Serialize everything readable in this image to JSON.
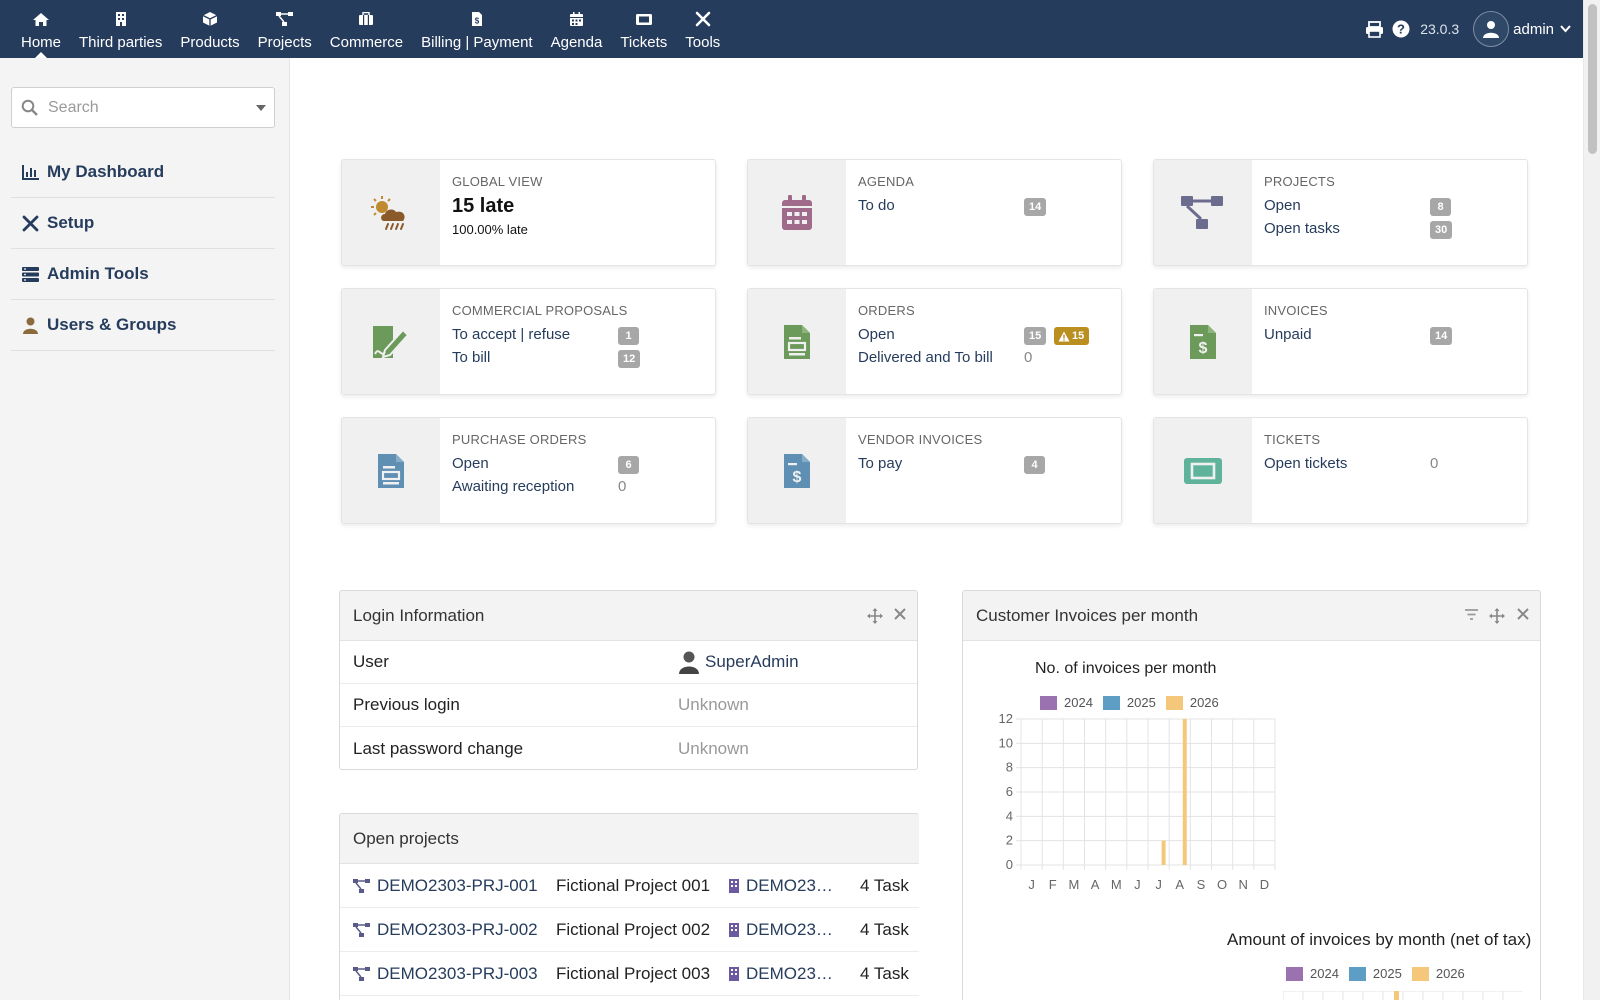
{
  "topnav": {
    "items": [
      {
        "label": "Home",
        "icon": "home-icon"
      },
      {
        "label": "Third parties",
        "icon": "building-icon"
      },
      {
        "label": "Products",
        "icon": "cube-icon"
      },
      {
        "label": "Projects",
        "icon": "project-icon"
      },
      {
        "label": "Commerce",
        "icon": "suitcase-icon"
      },
      {
        "label": "Billing | Payment",
        "icon": "invoice-icon"
      },
      {
        "label": "Agenda",
        "icon": "calendar-icon"
      },
      {
        "label": "Tickets",
        "icon": "ticket-icon"
      },
      {
        "label": "Tools",
        "icon": "tools-icon"
      }
    ],
    "version": "23.0.3",
    "user": "admin"
  },
  "sidebar": {
    "search_placeholder": "Search",
    "items": [
      {
        "label": "My Dashboard",
        "icon": "chart-icon"
      },
      {
        "label": "Setup",
        "icon": "tools-icon"
      },
      {
        "label": "Admin Tools",
        "icon": "server-icon"
      },
      {
        "label": "Users & Groups",
        "icon": "user-icon"
      }
    ]
  },
  "boxes": {
    "global": {
      "title": "GLOBAL VIEW",
      "late": "15 late",
      "percent": "100.00% late"
    },
    "agenda": {
      "title": "AGENDA",
      "todo": "To do",
      "todo_count": "14"
    },
    "projects": {
      "title": "PROJECTS",
      "open": "Open",
      "open_count": "8",
      "tasks": "Open tasks",
      "tasks_count": "30"
    },
    "proposals": {
      "title": "COMMERCIAL PROPOSALS",
      "accept": "To accept | refuse",
      "accept_count": "1",
      "bill": "To bill",
      "bill_count": "12"
    },
    "orders": {
      "title": "ORDERS",
      "open": "Open",
      "open_count": "15",
      "late_count": "15",
      "delivered": "Delivered and To bill",
      "delivered_count": "0"
    },
    "invoices": {
      "title": "INVOICES",
      "unpaid": "Unpaid",
      "unpaid_count": "14"
    },
    "purchase": {
      "title": "PURCHASE ORDERS",
      "open": "Open",
      "open_count": "6",
      "awaiting": "Awaiting reception",
      "awaiting_count": "0"
    },
    "vendor": {
      "title": "VENDOR INVOICES",
      "topay": "To pay",
      "topay_count": "4"
    },
    "tickets": {
      "title": "TICKETS",
      "open": "Open tickets",
      "open_count": "0"
    }
  },
  "login_panel": {
    "title": "Login Information",
    "rows": [
      {
        "label": "User",
        "value": "SuperAdmin"
      },
      {
        "label": "Previous login",
        "value": "Unknown"
      },
      {
        "label": "Last password change",
        "value": "Unknown"
      }
    ]
  },
  "projects_panel": {
    "title": "Open projects",
    "rows": [
      {
        "ref": "DEMO2303-PRJ-001",
        "name": "Fictional Project 001",
        "company": "DEMO23…",
        "tasks": "4 Task"
      },
      {
        "ref": "DEMO2303-PRJ-002",
        "name": "Fictional Project 002",
        "company": "DEMO23…",
        "tasks": "4 Task"
      },
      {
        "ref": "DEMO2303-PRJ-003",
        "name": "Fictional Project 003",
        "company": "DEMO23…",
        "tasks": "4 Task"
      }
    ]
  },
  "invoice_panel": {
    "title": "Customer Invoices per month",
    "chart2_title": "Amount of invoices by month (net of tax)"
  },
  "chart_data": {
    "type": "bar",
    "title": "No. of invoices per month",
    "categories": [
      "J",
      "F",
      "M",
      "A",
      "M",
      "J",
      "J",
      "A",
      "S",
      "O",
      "N",
      "D"
    ],
    "series": [
      {
        "name": "2024",
        "color": "#9b72b0",
        "values": [
          0,
          0,
          0,
          0,
          0,
          0,
          0,
          0,
          0,
          0,
          0,
          0
        ]
      },
      {
        "name": "2025",
        "color": "#5e9ec4",
        "values": [
          0,
          0,
          0,
          0,
          0,
          0,
          0,
          0,
          0,
          0,
          0,
          0
        ]
      },
      {
        "name": "2026",
        "color": "#f4c77a",
        "values": [
          0,
          0,
          0,
          0,
          0,
          0,
          2,
          12,
          0,
          0,
          0,
          0
        ]
      }
    ],
    "yticks": [
      0,
      2,
      4,
      6,
      8,
      10,
      12
    ],
    "ylim": [
      0,
      12
    ],
    "grid": true,
    "legend": "top"
  }
}
